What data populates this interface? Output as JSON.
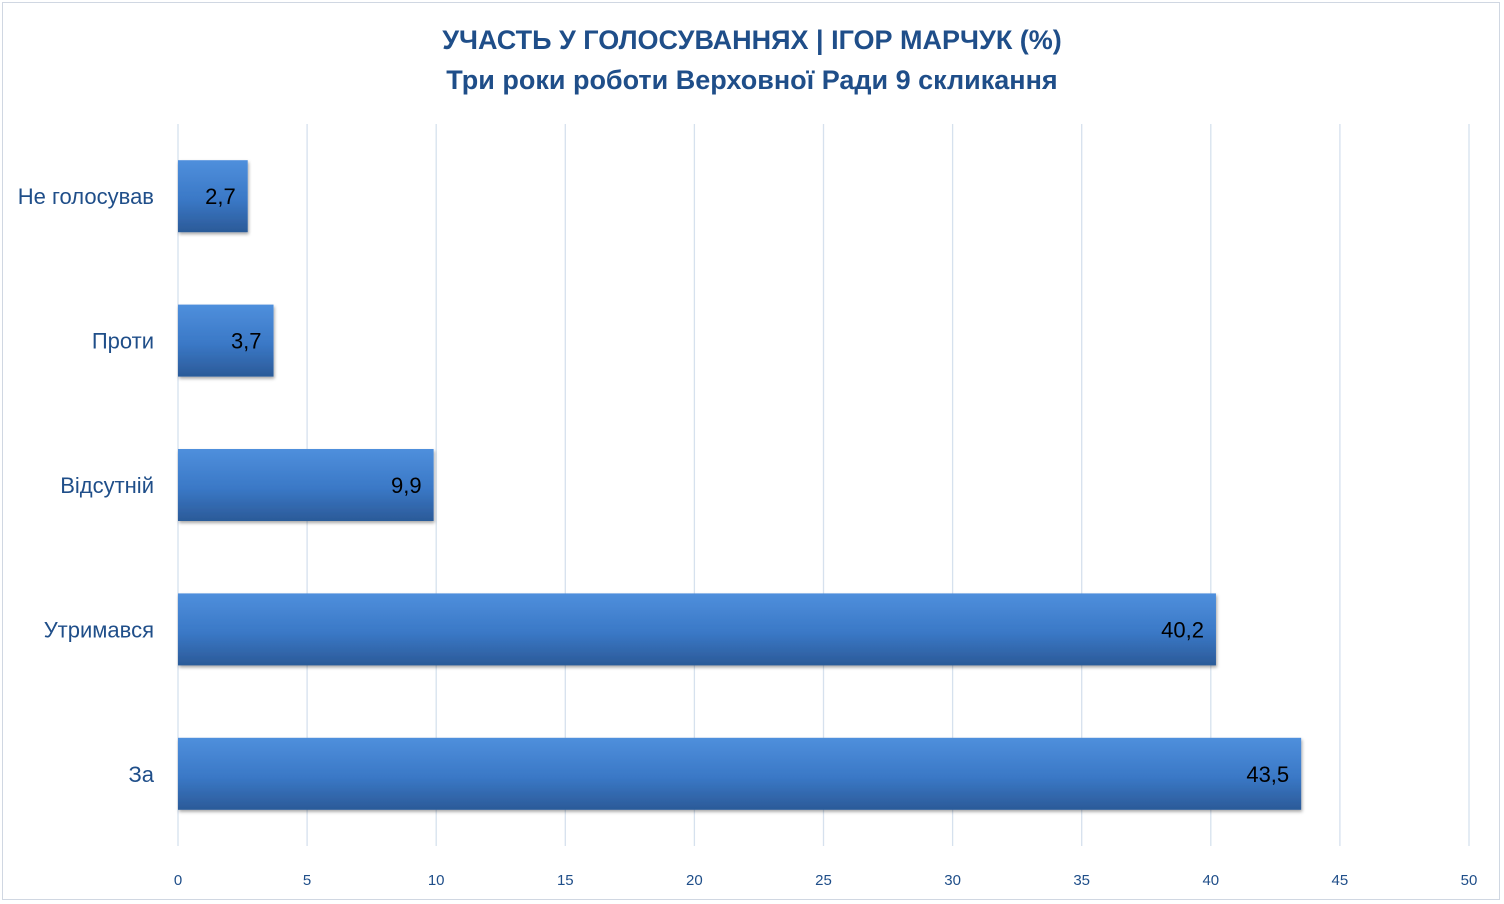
{
  "chart_data": {
    "type": "bar",
    "orientation": "horizontal",
    "title": "УЧАСТЬ У ГОЛОСУВАННЯХ | ІГОР МАРЧУК (%)",
    "subtitle": "Три роки роботи Верховної Ради 9 скликання",
    "categories": [
      "Не голосував",
      "Проти",
      "Відсутній",
      "Утримався",
      "За"
    ],
    "values": [
      2.7,
      3.7,
      9.9,
      40.2,
      43.5
    ],
    "data_labels": [
      "2,7",
      "3,7",
      "9,9",
      "40,2",
      "43,5"
    ],
    "xlim": [
      0,
      50
    ],
    "xticks": [
      0,
      5,
      10,
      15,
      20,
      25,
      30,
      35,
      40,
      45,
      50
    ],
    "grid": true,
    "bar_color": "#3d7ccc",
    "bar_color_dark": "#2d5e9e",
    "text_color": "#1f4e89"
  }
}
